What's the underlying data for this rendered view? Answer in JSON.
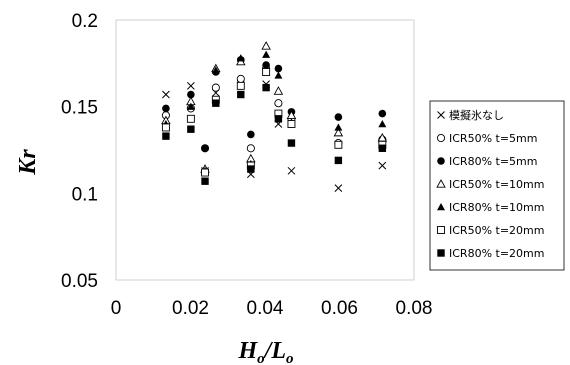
{
  "chart_data": {
    "type": "scatter",
    "title": "",
    "ylabel": "Kr",
    "xlabel_main": "H",
    "xlabel_sub1": "o",
    "xlabel_slash": "/L",
    "xlabel_sub2": "o",
    "xlim": [
      0,
      0.08
    ],
    "ylim": [
      0.05,
      0.2
    ],
    "x_ticks": [
      "0",
      "0.02",
      "0.04",
      "0.06",
      "0.08"
    ],
    "y_ticks": [
      "0.05",
      "0.1",
      "0.15",
      "0.2"
    ],
    "x_tick_values": [
      0,
      0.02,
      0.04,
      0.06,
      0.08
    ],
    "y_tick_values": [
      0.05,
      0.1,
      0.15,
      0.2
    ],
    "grid": false,
    "legend_position": "right",
    "series": [
      {
        "name": "模擬氷なし",
        "marker": "cross",
        "points": [
          [
            0.0134,
            0.157
          ],
          [
            0.0201,
            0.162
          ],
          [
            0.0239,
            0.113
          ],
          [
            0.0268,
            0.158
          ],
          [
            0.0335,
            0.163
          ],
          [
            0.0362,
            0.111
          ],
          [
            0.0403,
            0.163
          ],
          [
            0.0436,
            0.14
          ],
          [
            0.0471,
            0.113
          ],
          [
            0.0597,
            0.103
          ],
          [
            0.0715,
            0.116
          ]
        ]
      },
      {
        "name": "ICR50%  t=5mm",
        "marker": "circle-open",
        "points": [
          [
            0.0134,
            0.145
          ],
          [
            0.0201,
            0.149
          ],
          [
            0.0239,
            0.126
          ],
          [
            0.0268,
            0.161
          ],
          [
            0.0335,
            0.166
          ],
          [
            0.0362,
            0.126
          ],
          [
            0.0403,
            0.172
          ],
          [
            0.0436,
            0.152
          ],
          [
            0.0471,
            0.143
          ],
          [
            0.0597,
            0.129
          ],
          [
            0.0715,
            0.131
          ]
        ]
      },
      {
        "name": "ICR80%  t=5mm",
        "marker": "circle-filled",
        "points": [
          [
            0.0134,
            0.149
          ],
          [
            0.0201,
            0.157
          ],
          [
            0.0239,
            0.126
          ],
          [
            0.0268,
            0.17
          ],
          [
            0.0335,
            0.177
          ],
          [
            0.0362,
            0.134
          ],
          [
            0.0403,
            0.174
          ],
          [
            0.0436,
            0.172
          ],
          [
            0.0471,
            0.147
          ],
          [
            0.0597,
            0.144
          ],
          [
            0.0715,
            0.146
          ]
        ]
      },
      {
        "name": "ICR50%  t=10mm",
        "marker": "triangle-open",
        "points": [
          [
            0.0134,
            0.142
          ],
          [
            0.0201,
            0.153
          ],
          [
            0.0239,
            0.114
          ],
          [
            0.0268,
            0.172
          ],
          [
            0.0335,
            0.176
          ],
          [
            0.0362,
            0.12
          ],
          [
            0.0403,
            0.185
          ],
          [
            0.0436,
            0.159
          ],
          [
            0.0471,
            0.145
          ],
          [
            0.0597,
            0.135
          ],
          [
            0.0715,
            0.132
          ]
        ]
      },
      {
        "name": "ICR80%  t=10mm",
        "marker": "triangle-filled",
        "points": [
          [
            0.0134,
            0.14
          ],
          [
            0.0201,
            0.15
          ],
          [
            0.0239,
            0.113
          ],
          [
            0.0268,
            0.171
          ],
          [
            0.0335,
            0.178
          ],
          [
            0.0362,
            0.117
          ],
          [
            0.0403,
            0.18
          ],
          [
            0.0436,
            0.168
          ],
          [
            0.0471,
            0.141
          ],
          [
            0.0597,
            0.138
          ],
          [
            0.0715,
            0.14
          ]
        ]
      },
      {
        "name": "ICR50%  t=20mm",
        "marker": "square-open",
        "points": [
          [
            0.0134,
            0.138
          ],
          [
            0.0201,
            0.143
          ],
          [
            0.0239,
            0.112
          ],
          [
            0.0268,
            0.154
          ],
          [
            0.0335,
            0.162
          ],
          [
            0.0362,
            0.116
          ],
          [
            0.0403,
            0.17
          ],
          [
            0.0436,
            0.146
          ],
          [
            0.0471,
            0.14
          ],
          [
            0.0597,
            0.128
          ],
          [
            0.0715,
            0.128
          ]
        ]
      },
      {
        "name": "ICR80%  t=20mm",
        "marker": "square-filled",
        "points": [
          [
            0.0134,
            0.133
          ],
          [
            0.0201,
            0.137
          ],
          [
            0.0239,
            0.107
          ],
          [
            0.0268,
            0.152
          ],
          [
            0.0335,
            0.157
          ],
          [
            0.0362,
            0.114
          ],
          [
            0.0403,
            0.161
          ],
          [
            0.0436,
            0.143
          ],
          [
            0.0471,
            0.129
          ],
          [
            0.0597,
            0.119
          ],
          [
            0.0715,
            0.126
          ]
        ]
      }
    ]
  }
}
